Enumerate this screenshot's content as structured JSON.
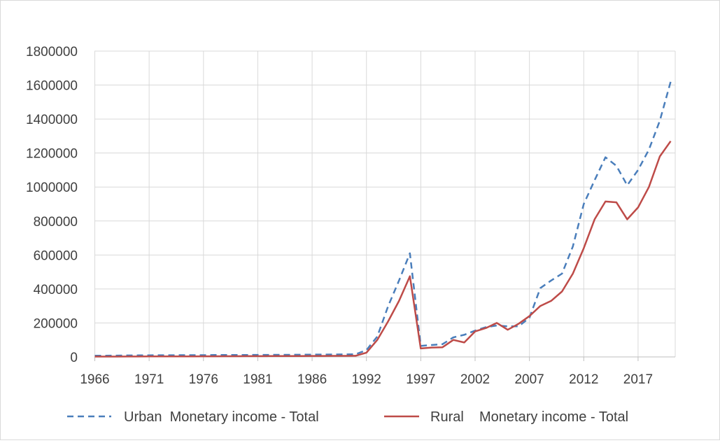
{
  "chart_data": {
    "type": "line",
    "title": "",
    "xlabel": "",
    "ylabel": "",
    "ylim": [
      0,
      1800000
    ],
    "y_ticks": [
      0,
      200000,
      400000,
      600000,
      800000,
      1000000,
      1200000,
      1400000,
      1600000,
      1800000
    ],
    "y_tick_labels": [
      "0",
      "200000",
      "400000",
      "600000",
      "800000",
      "1000000",
      "1200000",
      "1400000",
      "1600000",
      "1800000"
    ],
    "x_tick_labels": [
      "1966",
      "1971",
      "1976",
      "1981",
      "1986",
      "1992",
      "1997",
      "2002",
      "2007",
      "2012",
      "2017"
    ],
    "grid": true,
    "legend_position": "bottom",
    "x": [
      "1966",
      "1967",
      "1968",
      "1969",
      "1970",
      "1971",
      "1972",
      "1973",
      "1974",
      "1975",
      "1976",
      "1977",
      "1978",
      "1979",
      "1980",
      "1981",
      "1982",
      "1983",
      "1984",
      "1985",
      "1986",
      "1987",
      "1988",
      "1989",
      "1990",
      "1992",
      "1993",
      "1994",
      "1995",
      "1996",
      "1997",
      "1998",
      "1999",
      "2000",
      "2001",
      "2002",
      "2003",
      "2004",
      "2005",
      "2006",
      "2007",
      "2008",
      "2009",
      "2010",
      "2011",
      "2012",
      "2013",
      "2014",
      "2015",
      "2016",
      "2017",
      "2018",
      "2019",
      "2020"
    ],
    "series": [
      {
        "name": "Urban  Monetary income - Total",
        "color": "#4a7ebb",
        "dash": "dashed",
        "values": [
          7000,
          7500,
          8000,
          8500,
          9000,
          9500,
          10000,
          10000,
          10500,
          10500,
          10500,
          11000,
          11000,
          11500,
          11500,
          12000,
          12000,
          12500,
          12500,
          13000,
          13500,
          14000,
          14500,
          15000,
          15500,
          40000,
          120000,
          300000,
          450000,
          610000,
          65000,
          70000,
          75000,
          115000,
          130000,
          155000,
          175000,
          185000,
          180000,
          180000,
          230000,
          405000,
          450000,
          490000,
          650000,
          900000,
          1040000,
          1175000,
          1125000,
          1010000,
          1100000,
          1220000,
          1390000,
          1620000
        ]
      },
      {
        "name": "Rural    Monetary income - Total",
        "color": "#be4b48",
        "dash": "solid",
        "values": [
          2000,
          2000,
          2200,
          2400,
          2600,
          2800,
          3000,
          3000,
          3200,
          3400,
          3600,
          3800,
          4000,
          4200,
          4400,
          4600,
          4800,
          5000,
          5200,
          5400,
          5600,
          5800,
          6000,
          6200,
          6400,
          25000,
          100000,
          210000,
          330000,
          475000,
          50000,
          55000,
          57000,
          100000,
          85000,
          150000,
          170000,
          200000,
          160000,
          195000,
          240000,
          300000,
          330000,
          385000,
          490000,
          640000,
          810000,
          915000,
          910000,
          810000,
          880000,
          1000000,
          1180000,
          1270000
        ]
      }
    ]
  }
}
